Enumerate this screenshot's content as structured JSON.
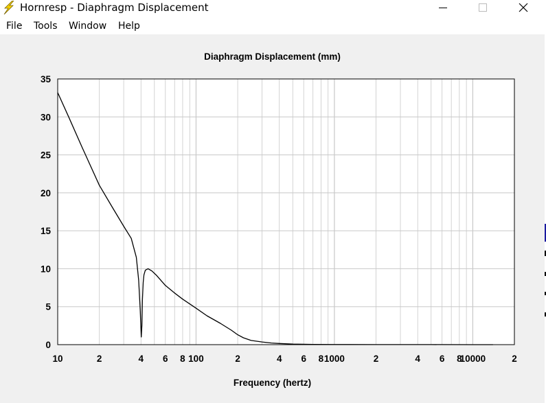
{
  "window": {
    "title": "Hornresp - Diaphragm Displacement",
    "icon": "lightning-bolt-icon",
    "controls": [
      "minimize-icon",
      "maximize-icon",
      "close-icon"
    ]
  },
  "menu": {
    "items": [
      {
        "label": "File"
      },
      {
        "label": "Tools"
      },
      {
        "label": "Window"
      },
      {
        "label": "Help"
      }
    ]
  },
  "colors": {
    "background": "#f0f0f0",
    "plot_background": "#ffffff",
    "grid": "#c8c8c8",
    "curve": "#000000",
    "icon_yellow": "#f5d000"
  },
  "chart_data": {
    "type": "line",
    "title": "Diaphragm Displacement (mm)",
    "xlabel": "Frequency (hertz)",
    "ylabel": "",
    "x_scale": "log",
    "xlim": [
      10,
      20000
    ],
    "ylim": [
      0,
      35
    ],
    "grid": true,
    "x_tick_labels": [
      "10",
      "2",
      "4",
      "6",
      "8",
      "100",
      "2",
      "4",
      "6",
      "8",
      "1000",
      "2",
      "4",
      "6",
      "8",
      "10000",
      "2"
    ],
    "x_tick_values": [
      10,
      20,
      40,
      60,
      80,
      100,
      200,
      400,
      600,
      800,
      1000,
      2000,
      4000,
      6000,
      8000,
      10000,
      20000
    ],
    "y_tick_labels": [
      "35",
      "30",
      "25",
      "20",
      "15",
      "10",
      "5",
      "0"
    ],
    "y_tick_values": [
      35,
      30,
      25,
      20,
      15,
      10,
      5,
      0
    ],
    "series": [
      {
        "x": [
          10,
          12,
          15,
          20,
          25,
          30,
          34,
          37,
          38.5,
          39.5,
          40.2,
          40.6,
          41,
          41.5,
          42,
          43,
          45,
          48,
          52,
          60,
          70,
          80,
          100,
          120,
          150,
          180,
          200,
          220,
          250,
          300,
          350,
          400,
          500,
          700,
          1000,
          2000,
          5000,
          10000,
          14000
        ],
        "y": [
          33.2,
          30.0,
          26.0,
          21.0,
          18.0,
          15.6,
          14.0,
          11.5,
          8.5,
          4.5,
          1.0,
          2.5,
          6.0,
          8.2,
          9.2,
          9.8,
          10.0,
          9.7,
          9.1,
          7.8,
          6.8,
          6.0,
          4.8,
          3.8,
          2.8,
          1.9,
          1.3,
          0.9,
          0.55,
          0.35,
          0.22,
          0.15,
          0.08,
          0.04,
          0.02,
          0.01,
          0.005,
          0.0,
          0.0
        ]
      }
    ]
  }
}
